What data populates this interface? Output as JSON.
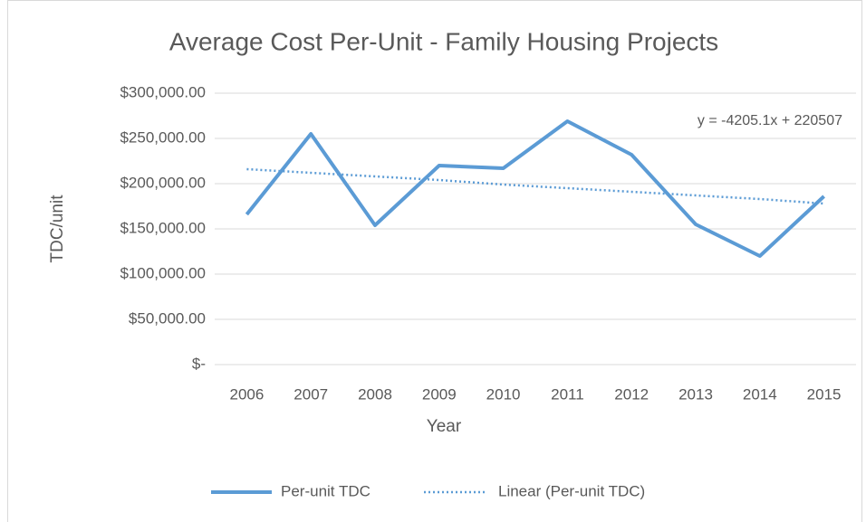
{
  "chart_data": {
    "type": "line",
    "title": "Average Cost Per-Unit - Family Housing Projects",
    "x_label": "Year",
    "y_label": "TDC/unit",
    "annotation": "y = -4205.1x + 220507",
    "categories": [
      "2006",
      "2007",
      "2008",
      "2009",
      "2010",
      "2011",
      "2012",
      "2013",
      "2014",
      "2015"
    ],
    "series": [
      {
        "name": "Per-unit TDC",
        "color": "#5b9bd5",
        "style": "solid",
        "values": [
          166000,
          255000,
          154000,
          220000,
          217000,
          269000,
          232000,
          155000,
          120000,
          186000
        ]
      },
      {
        "name": "Linear (Per-unit TDC)",
        "color": "#5b9bd5",
        "style": "dotted",
        "values": [
          216000,
          212000,
          208000,
          204000,
          199000,
          195000,
          191000,
          187000,
          183000,
          178000
        ]
      }
    ],
    "ylim": [
      0,
      300000
    ],
    "yticks": [
      {
        "value": 0,
        "label": "$-"
      },
      {
        "value": 50000,
        "label": "$50,000.00"
      },
      {
        "value": 100000,
        "label": "$100,000.00"
      },
      {
        "value": 150000,
        "label": "$150,000.00"
      },
      {
        "value": 200000,
        "label": "$200,000.00"
      },
      {
        "value": 250000,
        "label": "$250,000.00"
      },
      {
        "value": 300000,
        "label": "$300,000.00"
      }
    ],
    "grid": true,
    "legend": "bottom"
  }
}
